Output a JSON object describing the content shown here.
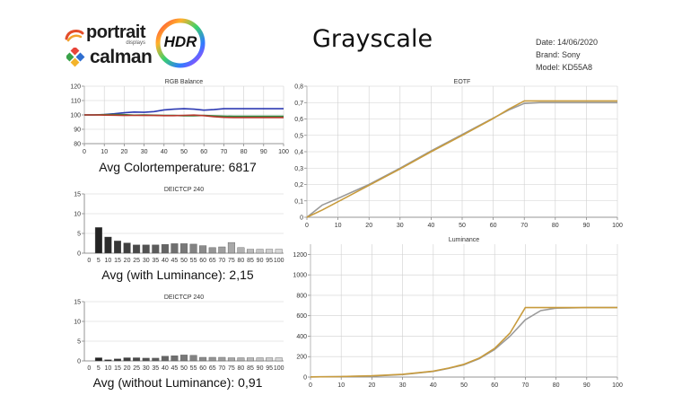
{
  "header": {
    "portrait_brand": "portrait",
    "portrait_sub": "displays",
    "calman_brand": "calman",
    "hdr_badge": "HDR",
    "title": "Grayscale",
    "date": "Date: 14/06/2020",
    "brand": "Brand: Sony",
    "model": "Model: KD55A8"
  },
  "summaries": {
    "colortemp": "Avg Colortemperature: 6817",
    "with_lum": "Avg (with Luminance): 2,15",
    "without_lum": "Avg (without Luminance): 0,91"
  },
  "colors": {
    "blue": "#2e3bb3",
    "green": "#2e8b3e",
    "red": "#b5372b",
    "gold": "#c89b3c",
    "gray": "#9a9a9a",
    "grid": "#d0d0d0",
    "axis": "#7a7a7a"
  },
  "chart_data": [
    {
      "id": "rgb",
      "type": "line",
      "title": "RGB Balance",
      "x": [
        0,
        5,
        10,
        15,
        20,
        25,
        30,
        35,
        40,
        45,
        50,
        55,
        60,
        65,
        70,
        75,
        80,
        85,
        90,
        95,
        100
      ],
      "xticks": [
        "0",
        "10",
        "20",
        "30",
        "40",
        "50",
        "60",
        "70",
        "80",
        "90",
        "100"
      ],
      "xtick_values": [
        0,
        10,
        20,
        30,
        40,
        50,
        60,
        70,
        80,
        90,
        100
      ],
      "yticks": [
        "80",
        "90",
        "100",
        "110",
        "120"
      ],
      "ytick_values": [
        80,
        90,
        100,
        110,
        120
      ],
      "xlim": [
        0,
        100
      ],
      "ylim": [
        80,
        120
      ],
      "series": [
        {
          "color": "#2e3bb3",
          "values": [
            100,
            100,
            100.3,
            100.8,
            101.5,
            102,
            101.8,
            102.3,
            103.5,
            104,
            104.3,
            104,
            103.3,
            103.7,
            104.3,
            104.3,
            104.3,
            104.3,
            104.3,
            104.3,
            104.3
          ]
        },
        {
          "color": "#2e8b3e",
          "values": [
            100,
            100,
            100.2,
            100.3,
            100.2,
            99.8,
            100,
            99.8,
            99.6,
            99.6,
            99.4,
            99.4,
            99.6,
            99.3,
            99.1,
            99,
            99,
            99,
            99,
            99,
            99
          ]
        },
        {
          "color": "#b5372b",
          "values": [
            100,
            100,
            99.9,
            99.8,
            99.6,
            99.7,
            99.6,
            99.6,
            99.5,
            99.5,
            99.7,
            99.9,
            99.5,
            98.8,
            98.3,
            98.2,
            98.2,
            98.2,
            98.2,
            98.2,
            98.2
          ]
        }
      ]
    },
    {
      "id": "de1",
      "type": "bar",
      "title": "DEICTCP 240",
      "categories": [
        "0",
        "5",
        "10",
        "15",
        "20",
        "25",
        "30",
        "35",
        "40",
        "45",
        "50",
        "55",
        "60",
        "65",
        "70",
        "75",
        "80",
        "85",
        "90",
        "95",
        "100"
      ],
      "values": [
        0,
        6.5,
        4.1,
        3.1,
        2.6,
        2.1,
        2.1,
        2.1,
        2.2,
        2.4,
        2.4,
        2.3,
        1.9,
        1.4,
        1.6,
        2.7,
        1.4,
        1.0,
        1.0,
        1.0,
        1.0
      ],
      "yticks": [
        "0",
        "5",
        "10",
        "15"
      ],
      "ytick_values": [
        0,
        5,
        10,
        15
      ],
      "ylim": [
        0,
        15
      ]
    },
    {
      "id": "de2",
      "type": "bar",
      "title": "DEICTCP 240",
      "categories": [
        "0",
        "5",
        "10",
        "15",
        "20",
        "25",
        "30",
        "35",
        "40",
        "45",
        "50",
        "55",
        "60",
        "65",
        "70",
        "75",
        "80",
        "85",
        "90",
        "95",
        "100"
      ],
      "values": [
        0,
        0.8,
        0.3,
        0.5,
        0.8,
        0.8,
        0.7,
        0.7,
        1.2,
        1.3,
        1.5,
        1.4,
        0.9,
        0.9,
        0.9,
        0.8,
        0.8,
        0.8,
        0.8,
        0.8,
        0.8
      ],
      "yticks": [
        "0",
        "5",
        "10",
        "15"
      ],
      "ytick_values": [
        0,
        5,
        10,
        15
      ],
      "ylim": [
        0,
        15
      ]
    },
    {
      "id": "eotf",
      "type": "line",
      "title": "EOTF",
      "x": [
        0,
        5,
        10,
        20,
        30,
        40,
        50,
        60,
        65,
        70,
        75,
        80,
        90,
        100
      ],
      "xticks": [
        "0",
        "10",
        "20",
        "30",
        "40",
        "50",
        "60",
        "70",
        "80",
        "90",
        "100"
      ],
      "xtick_values": [
        0,
        10,
        20,
        30,
        40,
        50,
        60,
        70,
        80,
        90,
        100
      ],
      "yticks": [
        "0",
        "0,1",
        "0,2",
        "0,3",
        "0,4",
        "0,5",
        "0,6",
        "0,7",
        "0,8"
      ],
      "ytick_values": [
        0,
        0.1,
        0.2,
        0.3,
        0.4,
        0.5,
        0.6,
        0.7,
        0.8
      ],
      "xlim": [
        0,
        100
      ],
      "ylim": [
        0,
        0.8
      ],
      "series": [
        {
          "color": "#9a9a9a",
          "values": [
            0,
            0.075,
            0.115,
            0.2,
            0.3,
            0.405,
            0.505,
            0.605,
            0.655,
            0.695,
            0.7,
            0.7,
            0.7,
            0.7
          ]
        },
        {
          "color": "#c89b3c",
          "values": [
            0,
            0.045,
            0.095,
            0.195,
            0.295,
            0.4,
            0.5,
            0.603,
            0.66,
            0.71,
            0.71,
            0.71,
            0.71,
            0.71
          ]
        }
      ]
    },
    {
      "id": "lum",
      "type": "line",
      "title": "Luminance",
      "x": [
        0,
        10,
        20,
        30,
        40,
        45,
        50,
        55,
        60,
        65,
        70,
        75,
        80,
        90,
        100
      ],
      "xticks": [
        "0",
        "10",
        "20",
        "30",
        "40",
        "50",
        "60",
        "70",
        "80",
        "90",
        "100"
      ],
      "xtick_values": [
        0,
        10,
        20,
        30,
        40,
        50,
        60,
        70,
        80,
        90,
        100
      ],
      "yticks": [
        "0",
        "200",
        "400",
        "600",
        "800",
        "1000",
        "1200"
      ],
      "ytick_values": [
        0,
        200,
        400,
        600,
        800,
        1000,
        1200
      ],
      "xlim": [
        0,
        100
      ],
      "ylim": [
        0,
        1300
      ],
      "series": [
        {
          "color": "#9a9a9a",
          "values": [
            2,
            4,
            10,
            25,
            55,
            85,
            120,
            180,
            270,
            400,
            560,
            650,
            675,
            680,
            680
          ]
        },
        {
          "color": "#c89b3c",
          "values": [
            2,
            4,
            12,
            27,
            58,
            88,
            125,
            185,
            280,
            430,
            680,
            680,
            680,
            680,
            680
          ]
        }
      ]
    }
  ]
}
